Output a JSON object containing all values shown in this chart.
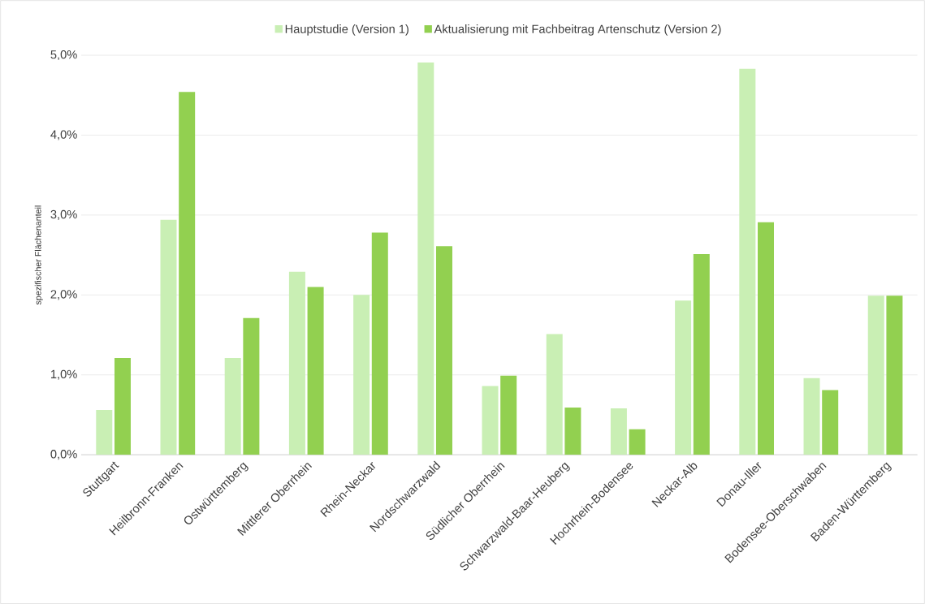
{
  "chart_data": {
    "type": "bar",
    "ylabel": "spezifischer Flächenanteil",
    "categories": [
      "Stuttgart",
      "Heilbronn-Franken",
      "Ostwürttemberg",
      "Mittlerer Oberrhein",
      "Rhein-Neckar",
      "Nordschwarzwald",
      "Südlicher Oberrhein",
      "Schwarzwald-Baar-Heuberg",
      "Hochrhein-Bodensee",
      "Neckar-Alb",
      "Donau-Iller",
      "Bodensee-Oberschwaben",
      "Baden-Württemberg"
    ],
    "series": [
      {
        "name": "Hauptstudie (Version 1)",
        "color": "#c9efb4",
        "values": [
          0.56,
          2.94,
          1.21,
          2.29,
          2.0,
          4.91,
          0.86,
          1.51,
          0.58,
          1.93,
          4.83,
          0.96,
          1.99
        ]
      },
      {
        "name": "Aktualisierung mit Fachbeitrag Artenschutz (Version 2)",
        "color": "#92d050",
        "values": [
          1.21,
          4.54,
          1.71,
          2.1,
          2.78,
          2.61,
          0.99,
          0.59,
          0.32,
          2.51,
          2.91,
          0.81,
          1.99
        ]
      }
    ],
    "ylim": [
      0,
      5
    ],
    "yticks": [
      {
        "value": 0,
        "label": "0,0%"
      },
      {
        "value": 1,
        "label": "1,0%"
      },
      {
        "value": 2,
        "label": "2,0%"
      },
      {
        "value": 3,
        "label": "3,0%"
      },
      {
        "value": 4,
        "label": "4,0%"
      },
      {
        "value": 5,
        "label": "5,0%"
      }
    ],
    "grid": "y",
    "legend": "top"
  }
}
